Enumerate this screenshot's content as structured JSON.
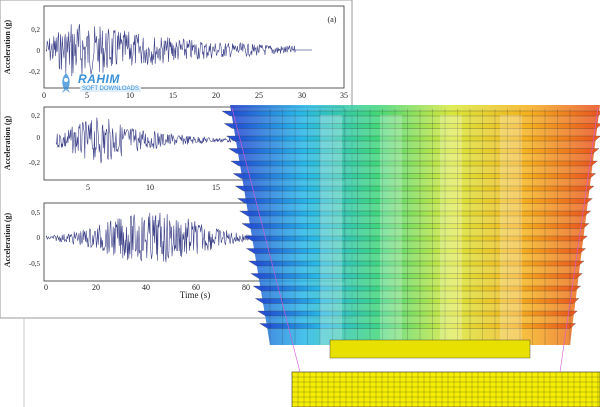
{
  "figure": {
    "panel_label": "(a)",
    "x_axis_label": "Time (s)",
    "y_axis_label": "Acceleration (g)",
    "colors": {
      "trace": "#3b3f86",
      "axis": "#333333"
    }
  },
  "panels": [
    {
      "ticks_x": [
        "0",
        "5",
        "10",
        "15",
        "20",
        "25",
        "30",
        "35"
      ],
      "ticks_y": [
        "0,2",
        "0",
        "-0,2"
      ]
    },
    {
      "ticks_x": [
        "5",
        "10",
        "15"
      ],
      "ticks_y": [
        "0,2",
        "0",
        "-0,2"
      ]
    },
    {
      "ticks_x": [
        "0",
        "20",
        "40",
        "60",
        "80"
      ],
      "ticks_y": [
        "0,5",
        "0",
        "-0,5"
      ]
    }
  ],
  "watermark": {
    "text": "RAHIM",
    "subtext": "SOFT DOWNLOADS",
    "icon": "rocket-logo-icon"
  },
  "model": {
    "description_icon": "building-contour-3d-model",
    "colors": [
      "#1f3fcf",
      "#27b7e8",
      "#3fd67a",
      "#d9e83a",
      "#f5b21e",
      "#e8501e"
    ]
  }
}
